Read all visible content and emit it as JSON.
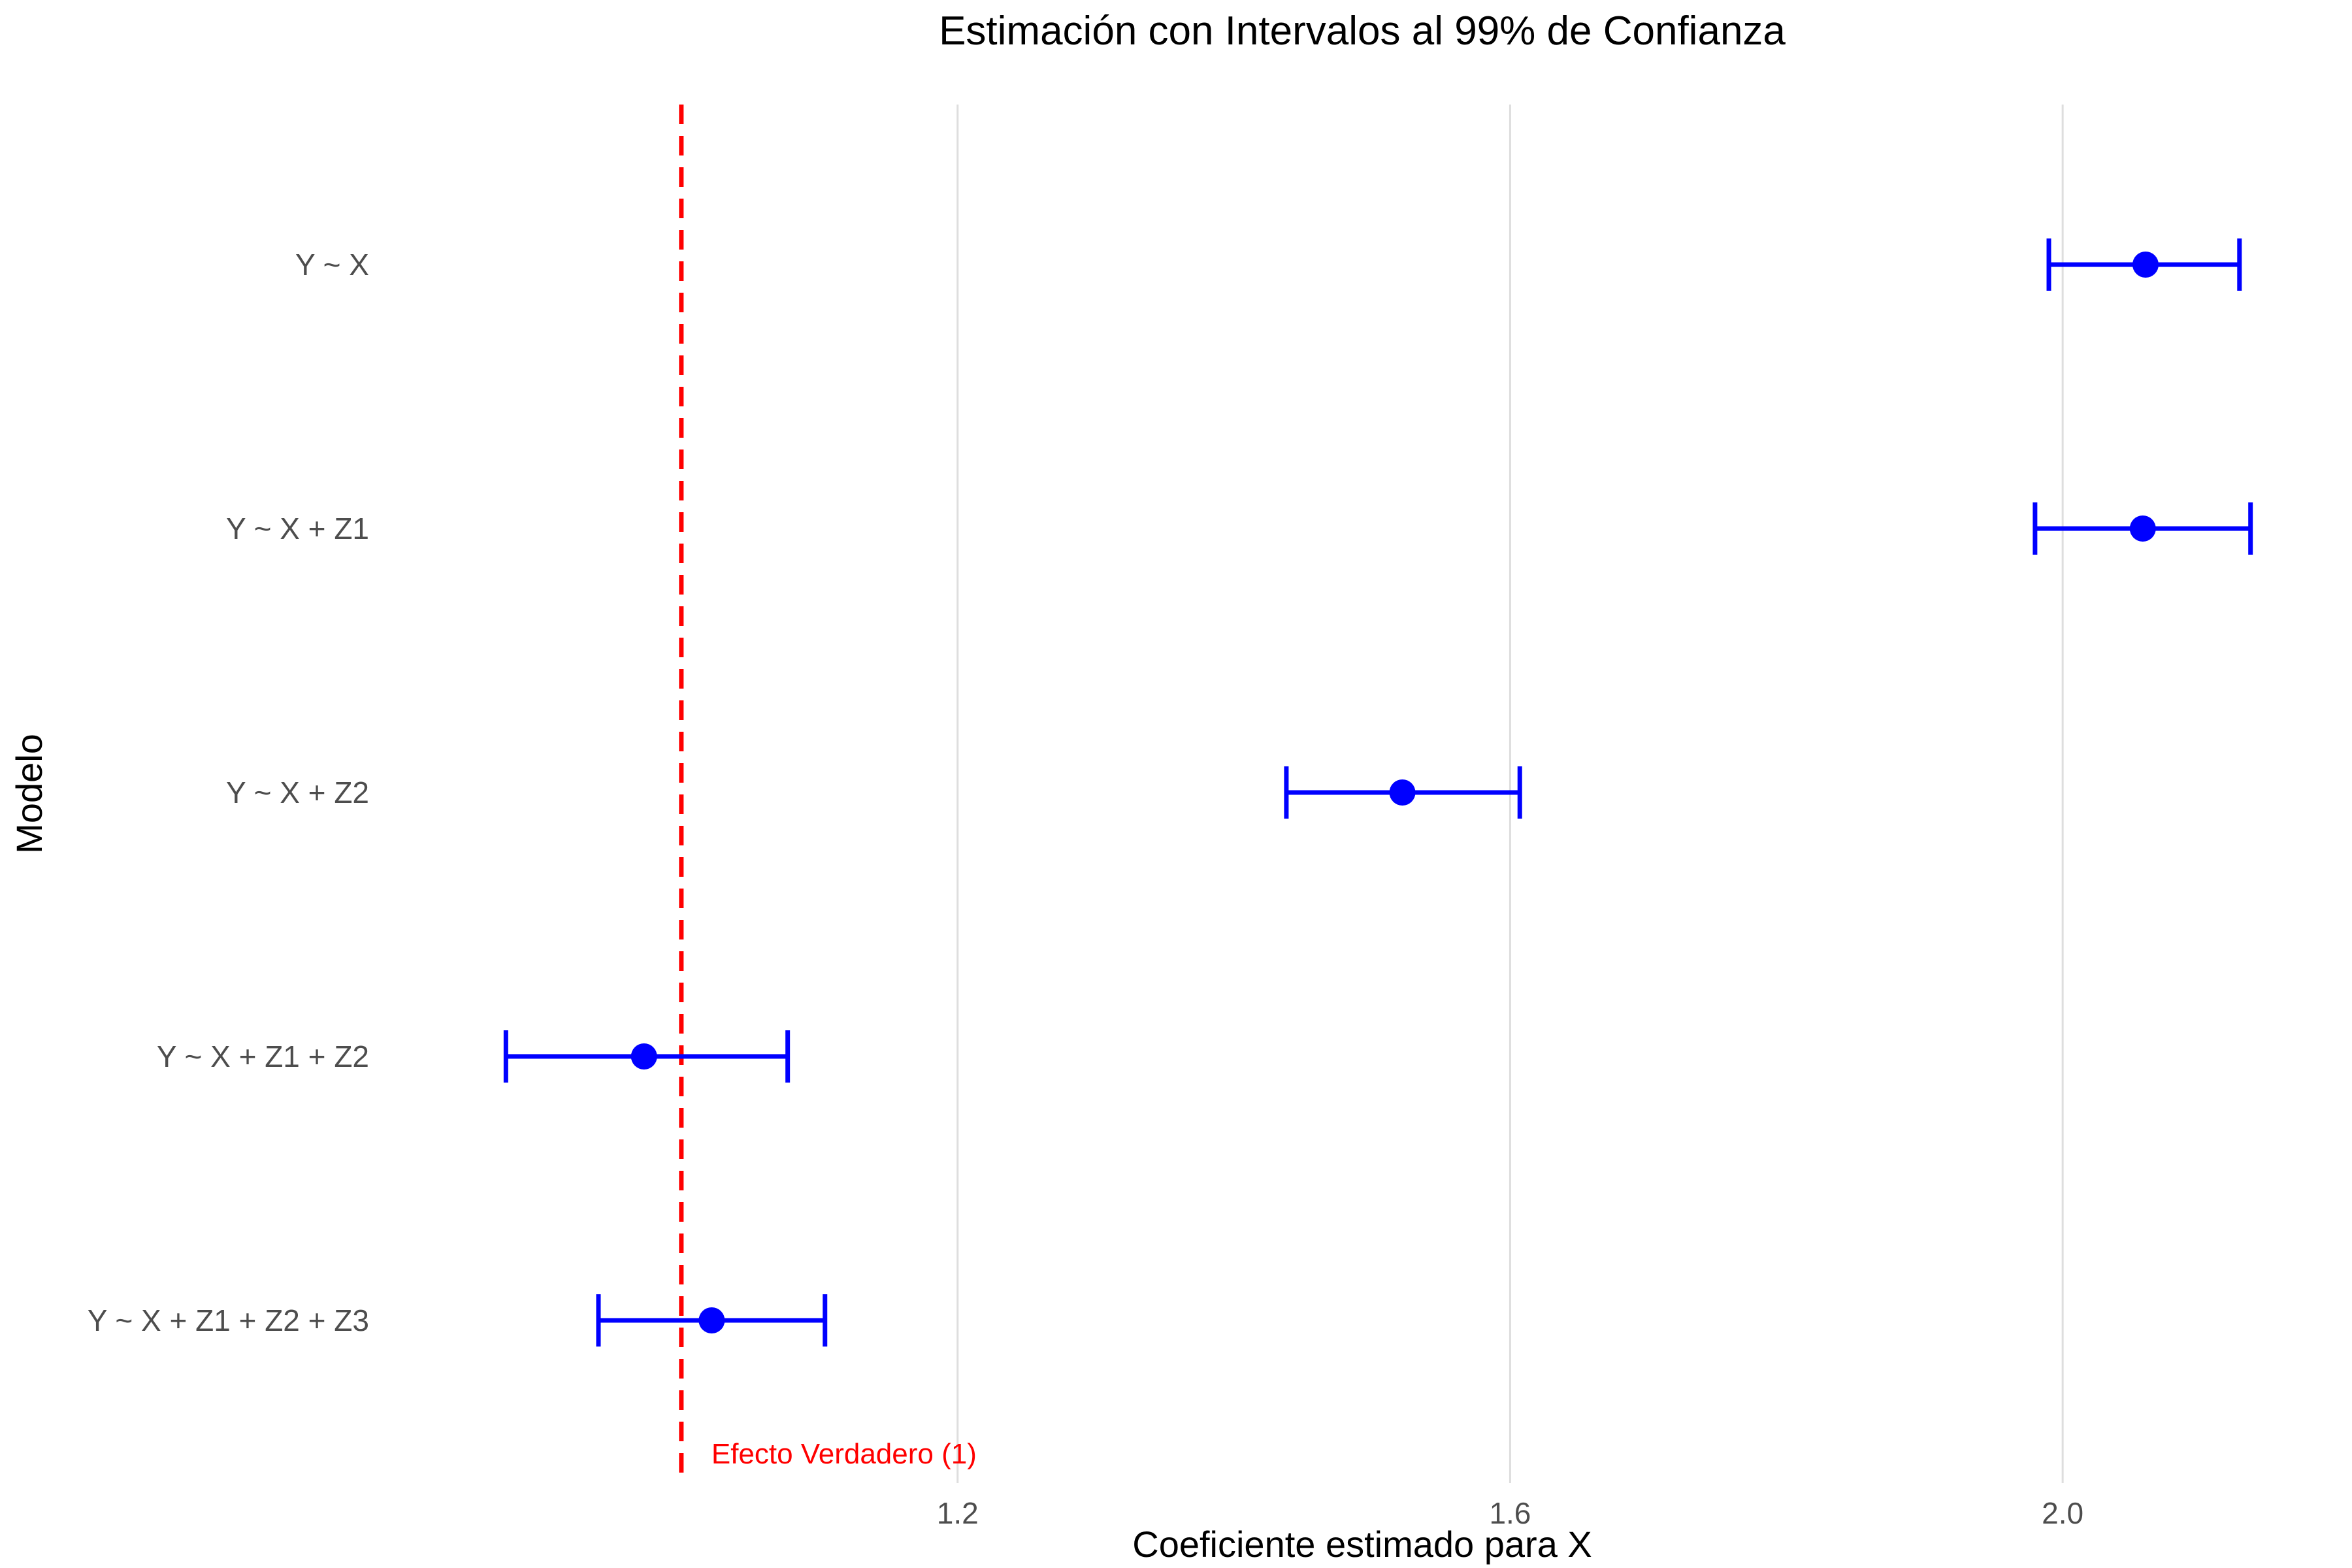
{
  "chart_data": {
    "type": "scatter",
    "subtype": "forest-plot with 99% confidence intervals",
    "title": "Estimación con Intervalos al 99% de Confianza",
    "xlabel": "Coeficiente estimado para X",
    "ylabel": "Modelo",
    "xlim": [
      0.8,
      2.2
    ],
    "x_ticks": [
      1.2,
      1.6,
      2.0
    ],
    "x_tick_labels": [
      "1.2",
      "1.6",
      "2.0"
    ],
    "grid": "vertical major gridlines only",
    "categories": [
      "Y ~ X",
      "Y ~ X + Z1",
      "Y ~ X + Z2",
      "Y ~ X + Z1 + Z2",
      "Y ~ X + Z1 + Z2 + Z3"
    ],
    "estimates": [
      2.06,
      2.058,
      1.522,
      0.973,
      1.022
    ],
    "lower": [
      1.99,
      1.98,
      1.438,
      0.873,
      0.94
    ],
    "upper": [
      2.128,
      2.136,
      1.607,
      1.077,
      1.104
    ],
    "series_color": "#0000ff",
    "reference_line": {
      "value": 1.0,
      "label": "Efecto Verdadero (1)",
      "color": "#ff0000",
      "style": "dashed"
    }
  }
}
